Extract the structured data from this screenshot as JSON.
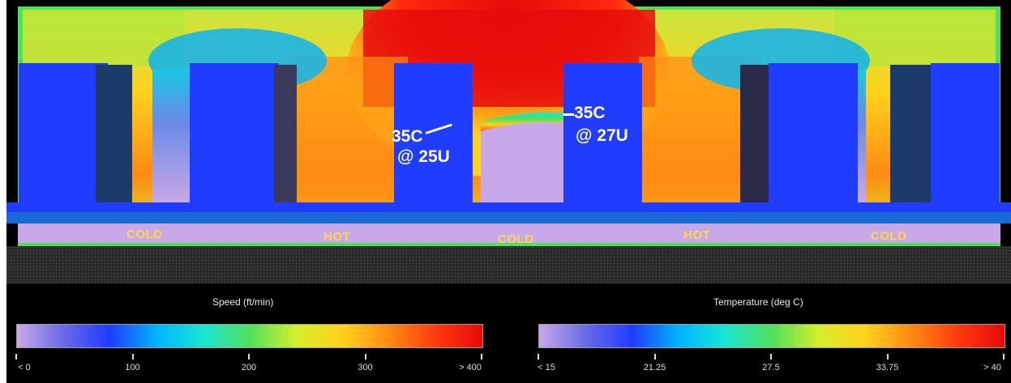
{
  "annotations": {
    "left": {
      "line1": "35C",
      "line2": "@ 25U"
    },
    "right": {
      "line1": "35C",
      "line2": "@ 27U"
    }
  },
  "aisles": [
    "COLD",
    "HOT",
    "COLD",
    "HOT",
    "COLD"
  ],
  "speed_scale": {
    "title": "Speed (ft/min)",
    "ticks": [
      "< 0",
      "100",
      "200",
      "300",
      "> 400"
    ],
    "colors": [
      "#c8a8e8",
      "#6a6ae6",
      "#1f3cff",
      "#00b4ff",
      "#19e6d2",
      "#4fe05a",
      "#d6ee2a",
      "#ffd21c",
      "#ff8a14",
      "#ff3a0c",
      "#e60a0a"
    ]
  },
  "temperature_scale": {
    "title": "Temperature (deg C)",
    "ticks": [
      "< 15",
      "21.25",
      "27.5",
      "33.75",
      "> 40"
    ],
    "colors": [
      "#c8a8e8",
      "#6a6ae6",
      "#1f3cff",
      "#00b4ff",
      "#19e6d2",
      "#4fe05a",
      "#d6ee2a",
      "#ffd21c",
      "#ff8a14",
      "#ff3a0c",
      "#e60a0a"
    ]
  }
}
